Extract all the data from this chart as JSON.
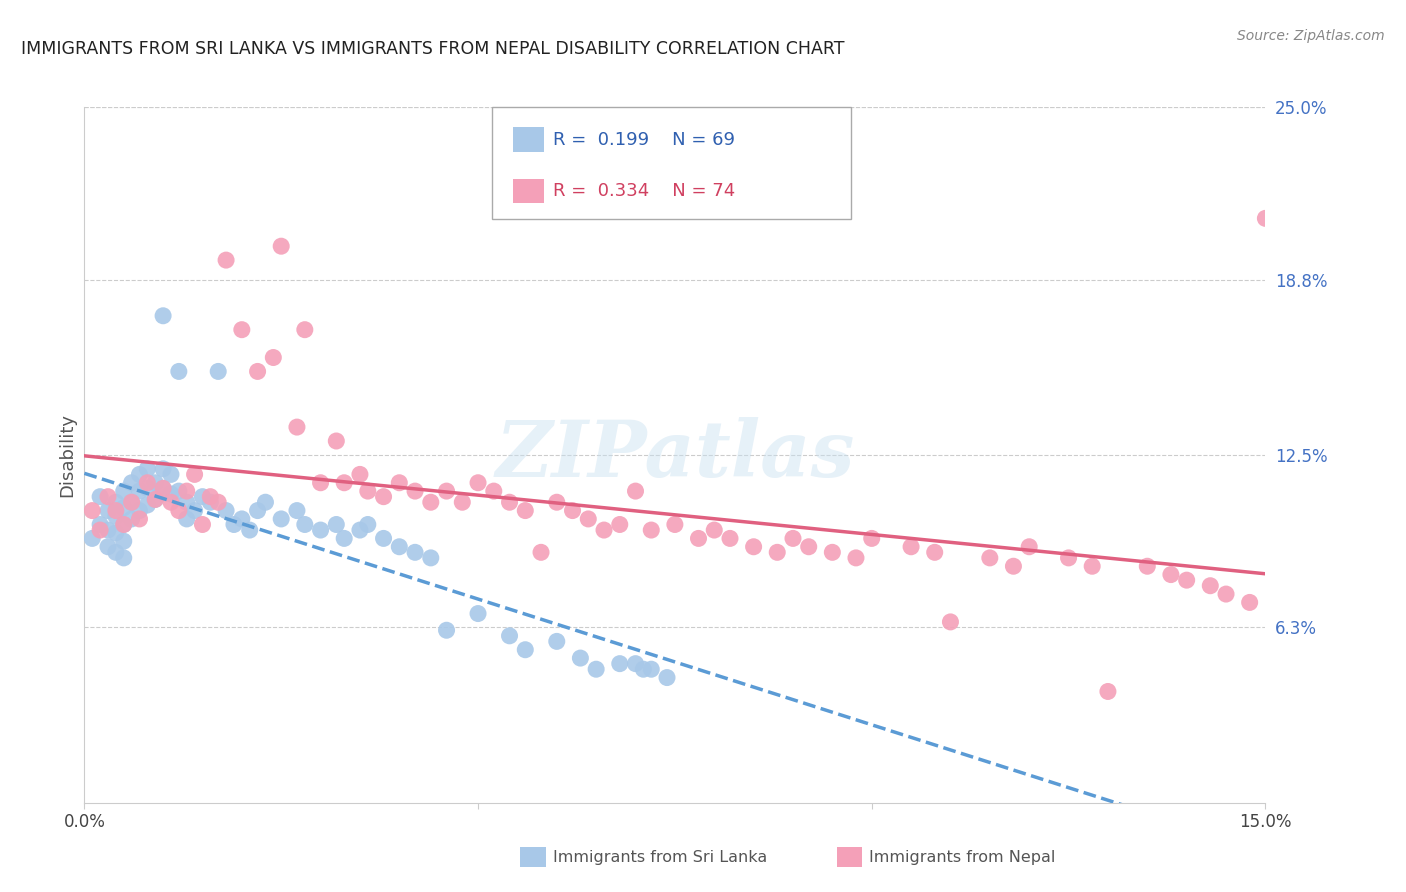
{
  "title": "IMMIGRANTS FROM SRI LANKA VS IMMIGRANTS FROM NEPAL DISABILITY CORRELATION CHART",
  "source": "Source: ZipAtlas.com",
  "ylabel": "Disability",
  "x_min": 0.0,
  "x_max": 0.15,
  "y_min": 0.0,
  "y_max": 0.25,
  "y_ticks_right": [
    0.063,
    0.125,
    0.188,
    0.25
  ],
  "y_tick_labels_right": [
    "6.3%",
    "12.5%",
    "18.8%",
    "25.0%"
  ],
  "legend_sri_lanka_R": "0.199",
  "legend_sri_lanka_N": "69",
  "legend_nepal_R": "0.334",
  "legend_nepal_N": "74",
  "color_sri_lanka": "#a8c8e8",
  "color_nepal": "#f4a0b8",
  "color_trend_sri_lanka": "#5b9bd5",
  "color_trend_nepal": "#e06080",
  "watermark": "ZIPatlas",
  "sri_lanka_x": [
    0.001,
    0.002,
    0.002,
    0.003,
    0.003,
    0.003,
    0.004,
    0.004,
    0.004,
    0.004,
    0.005,
    0.005,
    0.005,
    0.005,
    0.005,
    0.006,
    0.006,
    0.006,
    0.007,
    0.007,
    0.007,
    0.008,
    0.008,
    0.008,
    0.009,
    0.009,
    0.01,
    0.01,
    0.01,
    0.011,
    0.011,
    0.012,
    0.012,
    0.013,
    0.013,
    0.014,
    0.015,
    0.016,
    0.017,
    0.018,
    0.019,
    0.02,
    0.021,
    0.022,
    0.023,
    0.025,
    0.027,
    0.028,
    0.03,
    0.032,
    0.033,
    0.035,
    0.036,
    0.038,
    0.04,
    0.042,
    0.044,
    0.046,
    0.05,
    0.054,
    0.056,
    0.06,
    0.063,
    0.065,
    0.068,
    0.07,
    0.071,
    0.072,
    0.074
  ],
  "sri_lanka_y": [
    0.095,
    0.11,
    0.1,
    0.105,
    0.098,
    0.092,
    0.108,
    0.103,
    0.097,
    0.09,
    0.112,
    0.106,
    0.1,
    0.094,
    0.088,
    0.115,
    0.108,
    0.102,
    0.118,
    0.112,
    0.105,
    0.12,
    0.113,
    0.107,
    0.115,
    0.109,
    0.175,
    0.12,
    0.113,
    0.118,
    0.111,
    0.155,
    0.112,
    0.108,
    0.102,
    0.105,
    0.11,
    0.108,
    0.155,
    0.105,
    0.1,
    0.102,
    0.098,
    0.105,
    0.108,
    0.102,
    0.105,
    0.1,
    0.098,
    0.1,
    0.095,
    0.098,
    0.1,
    0.095,
    0.092,
    0.09,
    0.088,
    0.062,
    0.068,
    0.06,
    0.055,
    0.058,
    0.052,
    0.048,
    0.05,
    0.05,
    0.048,
    0.048,
    0.045
  ],
  "nepal_x": [
    0.001,
    0.002,
    0.003,
    0.004,
    0.005,
    0.006,
    0.007,
    0.008,
    0.009,
    0.01,
    0.011,
    0.012,
    0.013,
    0.014,
    0.015,
    0.016,
    0.017,
    0.018,
    0.02,
    0.022,
    0.024,
    0.025,
    0.027,
    0.028,
    0.03,
    0.032,
    0.033,
    0.035,
    0.036,
    0.038,
    0.04,
    0.042,
    0.044,
    0.046,
    0.048,
    0.05,
    0.052,
    0.054,
    0.056,
    0.058,
    0.06,
    0.062,
    0.064,
    0.066,
    0.068,
    0.07,
    0.072,
    0.075,
    0.078,
    0.08,
    0.082,
    0.085,
    0.088,
    0.09,
    0.092,
    0.095,
    0.098,
    0.1,
    0.105,
    0.108,
    0.11,
    0.115,
    0.118,
    0.12,
    0.125,
    0.128,
    0.13,
    0.135,
    0.138,
    0.14,
    0.143,
    0.145,
    0.148,
    0.15
  ],
  "nepal_y": [
    0.105,
    0.098,
    0.11,
    0.105,
    0.1,
    0.108,
    0.102,
    0.115,
    0.109,
    0.113,
    0.108,
    0.105,
    0.112,
    0.118,
    0.1,
    0.11,
    0.108,
    0.195,
    0.17,
    0.155,
    0.16,
    0.2,
    0.135,
    0.17,
    0.115,
    0.13,
    0.115,
    0.118,
    0.112,
    0.11,
    0.115,
    0.112,
    0.108,
    0.112,
    0.108,
    0.115,
    0.112,
    0.108,
    0.105,
    0.09,
    0.108,
    0.105,
    0.102,
    0.098,
    0.1,
    0.112,
    0.098,
    0.1,
    0.095,
    0.098,
    0.095,
    0.092,
    0.09,
    0.095,
    0.092,
    0.09,
    0.088,
    0.095,
    0.092,
    0.09,
    0.065,
    0.088,
    0.085,
    0.092,
    0.088,
    0.085,
    0.04,
    0.085,
    0.082,
    0.08,
    0.078,
    0.075,
    0.072,
    0.21
  ]
}
